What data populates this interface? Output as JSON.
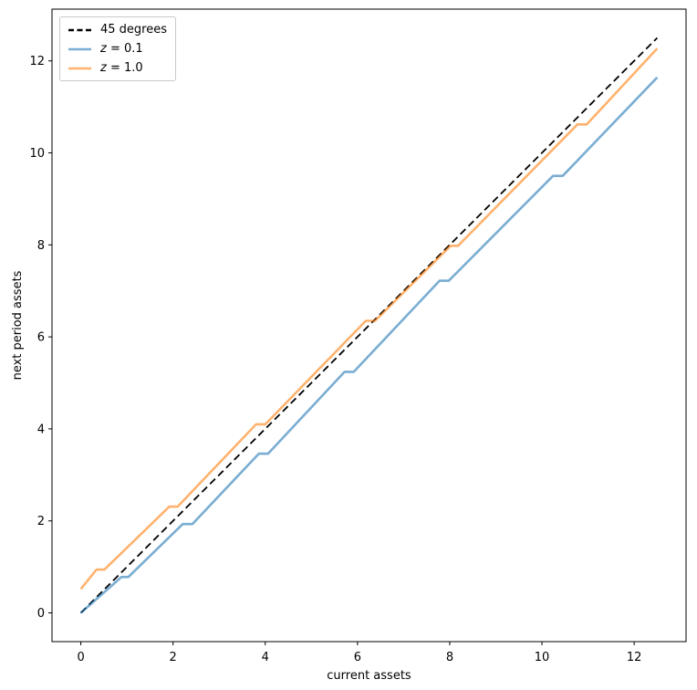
{
  "figure": {
    "background_color": "#ffffff",
    "title": ""
  },
  "chart_data": {
    "type": "line",
    "title": "",
    "xlabel": "current assets",
    "ylabel": "next period assets",
    "xlim": [
      -0.625,
      13.125
    ],
    "ylim": [
      -0.625,
      13.125
    ],
    "xticks": [
      0,
      2,
      4,
      6,
      8,
      10,
      12
    ],
    "yticks": [
      0,
      2,
      4,
      6,
      8,
      10,
      12
    ],
    "grid": false,
    "legend_position": "upper left",
    "axis_color": "#000000",
    "tick_font_size": 13,
    "label_font_size": 13,
    "series": [
      {
        "id": "45-degrees",
        "name": "45 degrees",
        "color": "#000000",
        "opacity": 1,
        "width": 1.8,
        "dash": "8 4.5",
        "legend_dash": "6 3.5",
        "points": [
          [
            0,
            0
          ],
          [
            12.5,
            12.5
          ]
        ]
      },
      {
        "id": "z-0.1",
        "name": "z = 0.1",
        "color": "#1f77b4",
        "opacity": 0.6,
        "width": 2.6,
        "dash": null,
        "legend_dash": null,
        "points": [
          [
            0,
            0
          ],
          [
            0.88,
            0.78
          ],
          [
            1.03,
            0.78
          ],
          [
            2.21,
            1.93
          ],
          [
            2.42,
            1.93
          ],
          [
            3.86,
            3.46
          ],
          [
            4.06,
            3.46
          ],
          [
            5.72,
            5.24
          ],
          [
            5.92,
            5.24
          ],
          [
            7.78,
            7.22
          ],
          [
            7.98,
            7.22
          ],
          [
            10.24,
            9.5
          ],
          [
            10.45,
            9.5
          ],
          [
            12.5,
            11.64
          ]
        ]
      },
      {
        "id": "z-1.0",
        "name": "z = 1.0",
        "color": "#ff7f0e",
        "opacity": 0.6,
        "width": 2.6,
        "dash": null,
        "legend_dash": null,
        "points": [
          [
            0,
            0.52
          ],
          [
            0.34,
            0.94
          ],
          [
            0.51,
            0.94
          ],
          [
            1.92,
            2.31
          ],
          [
            2.1,
            2.31
          ],
          [
            3.8,
            4.1
          ],
          [
            4.0,
            4.1
          ],
          [
            6.18,
            6.35
          ],
          [
            6.38,
            6.35
          ],
          [
            8.02,
            7.98
          ],
          [
            8.18,
            7.98
          ],
          [
            10.77,
            10.62
          ],
          [
            10.97,
            10.62
          ],
          [
            12.5,
            12.27
          ]
        ]
      }
    ]
  }
}
